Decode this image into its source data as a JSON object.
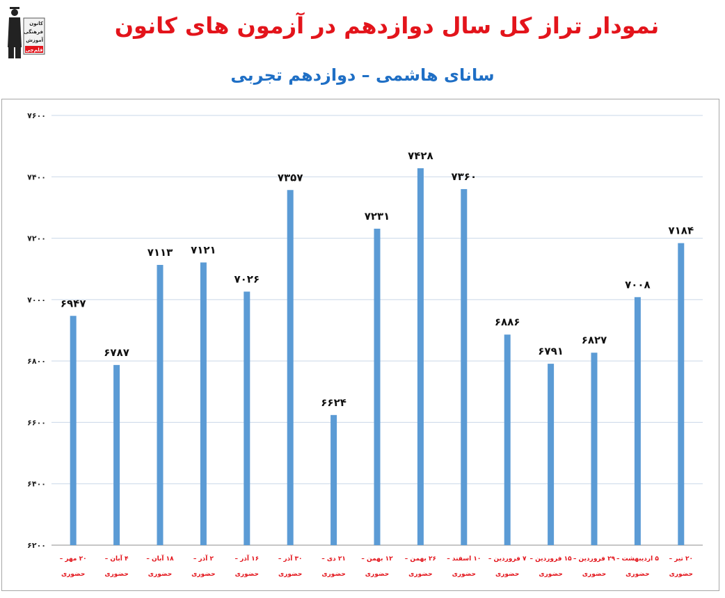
{
  "logo": {
    "lines": [
      "کانون",
      "فرهنگی",
      "آموزش"
    ],
    "badge": "قلم‌چی"
  },
  "chart_data": {
    "type": "bar",
    "title": "نمودار تراز کل سال دوازدهم در آزمون های کانون",
    "subtitle": "سانای هاشمی – دوازدهم تجربی",
    "ylim": [
      6200,
      7600
    ],
    "yticks": [
      6200,
      6400,
      6600,
      6800,
      7000,
      7200,
      7400,
      7600
    ],
    "ytick_labels": [
      "۶۲۰۰",
      "۶۴۰۰",
      "۶۶۰۰",
      "۶۸۰۰",
      "۷۰۰۰",
      "۷۲۰۰",
      "۷۴۰۰",
      "۷۶۰۰"
    ],
    "grid": true,
    "color": "#5b9bd5",
    "categories": [
      [
        "۲۰ مهر –",
        "حضوری"
      ],
      [
        "۴ آبان –",
        "حضوری"
      ],
      [
        "۱۸ آبان –",
        "حضوری"
      ],
      [
        "۲ آذر –",
        "حضوری"
      ],
      [
        "۱۶ آذر –",
        "حضوری"
      ],
      [
        "۳۰ آذر –",
        "حضوری"
      ],
      [
        "۲۱ دی –",
        "حضوری"
      ],
      [
        "۱۲ بهمن –",
        "حضوری"
      ],
      [
        "۲۶ بهمن –",
        "حضوری"
      ],
      [
        "۱۰ اسفند –",
        "حضوری"
      ],
      [
        "۷ فروردین –",
        "حضوری"
      ],
      [
        "۱۵ فروردین –",
        "حضوری"
      ],
      [
        "۲۹ فروردین –",
        "حضوری"
      ],
      [
        "۵ اردیبهشت –",
        "حضوری"
      ],
      [
        "۲۰ تیر –",
        "حضوری"
      ]
    ],
    "values": [
      6947,
      6787,
      7113,
      7121,
      7026,
      7357,
      6624,
      7231,
      7428,
      7360,
      6886,
      6791,
      6827,
      7008,
      7184
    ],
    "value_labels": [
      "۶۹۴۷",
      "۶۷۸۷",
      "۷۱۱۳",
      "۷۱۲۱",
      "۷۰۲۶",
      "۷۳۵۷",
      "۶۶۲۴",
      "۷۲۳۱",
      "۷۴۲۸",
      "۷۳۶۰",
      "۶۸۸۶",
      "۶۷۹۱",
      "۶۸۲۷",
      "۷۰۰۸",
      "۷۱۸۴"
    ]
  }
}
